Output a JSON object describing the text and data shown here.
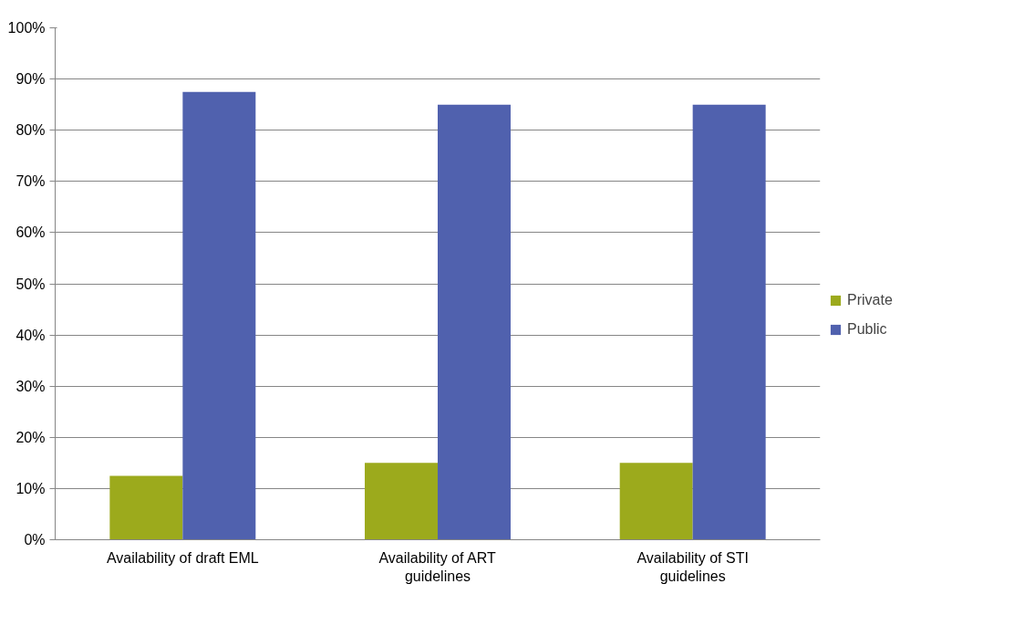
{
  "chart_data": {
    "type": "bar",
    "categories": [
      "Availability of draft EML",
      "Availability of ART guidelines",
      "Availability of STI guidelines"
    ],
    "series": [
      {
        "name": "Private",
        "color": "#9caa1c",
        "values": [
          12.5,
          15,
          15
        ]
      },
      {
        "name": "Public",
        "color": "#5061ae",
        "values": [
          87.5,
          85,
          85
        ]
      }
    ],
    "ylim": [
      0,
      100
    ],
    "yticks": [
      {
        "value": 0,
        "label": "0%"
      },
      {
        "value": 10,
        "label": "10%"
      },
      {
        "value": 20,
        "label": "20%"
      },
      {
        "value": 30,
        "label": "30%"
      },
      {
        "value": 40,
        "label": "40%"
      },
      {
        "value": 50,
        "label": "50%"
      },
      {
        "value": 60,
        "label": "60%"
      },
      {
        "value": 70,
        "label": "70%"
      },
      {
        "value": 80,
        "label": "80%"
      },
      {
        "value": 90,
        "label": "90%"
      },
      {
        "value": 100,
        "label": "100%"
      }
    ],
    "grid": "y",
    "legend": "right"
  }
}
